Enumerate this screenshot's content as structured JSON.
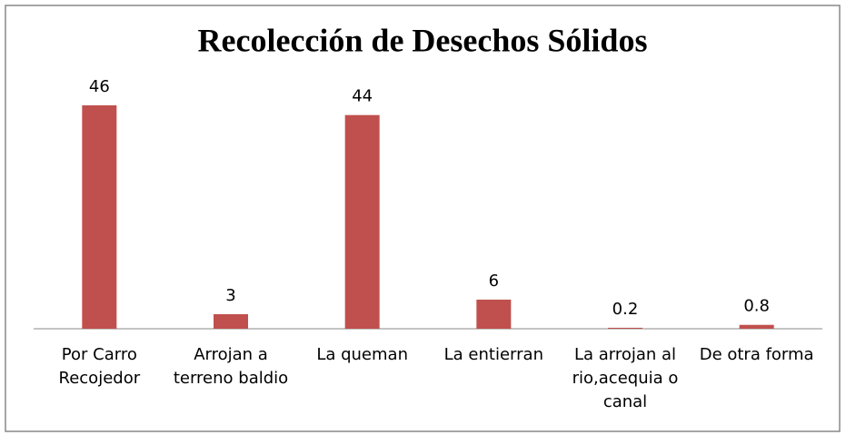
{
  "chart_data": {
    "type": "bar",
    "title": "Recolección de Desechos Sólidos",
    "categories": [
      "Por Carro Recojedor",
      "Arrojan a terreno baldio",
      "La queman",
      "La entierran",
      "La arrojan al rio,acequia o canal",
      "De otra forma"
    ],
    "values": [
      46,
      3,
      44,
      6,
      0.2,
      0.8
    ],
    "color": "#c0504d"
  }
}
